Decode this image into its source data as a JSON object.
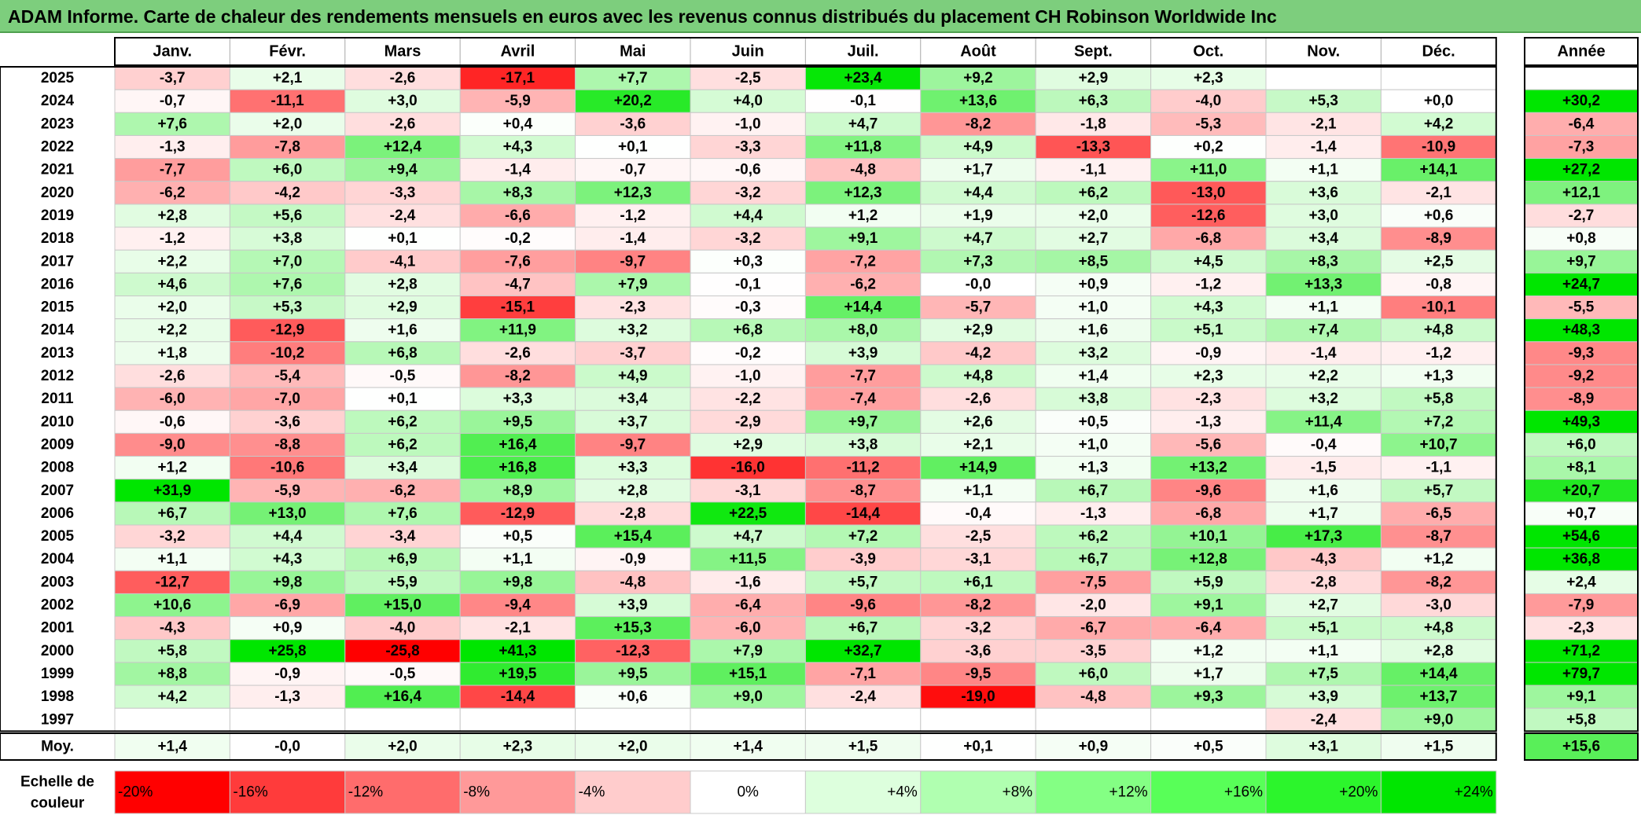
{
  "title": "ADAM Informe. Carte de chaleur des rendements mensuels en euros avec les revenus connus distribués du placement CH Robinson Worldwide Inc",
  "chart_data": {
    "type": "heatmap",
    "months": [
      "Janv.",
      "Févr.",
      "Mars",
      "Avril",
      "Mai",
      "Juin",
      "Juil.",
      "Août",
      "Sept.",
      "Oct.",
      "Nov.",
      "Déc."
    ],
    "year_header": "Année",
    "rows": [
      {
        "year": "2025",
        "values": [
          "-3,7",
          "+2,1",
          "-2,6",
          "-17,1",
          "+7,7",
          "-2,5",
          "+23,4",
          "+9,2",
          "+2,9",
          "+2,3",
          "",
          ""
        ],
        "annual": ""
      },
      {
        "year": "2024",
        "values": [
          "-0,7",
          "-11,1",
          "+3,0",
          "-5,9",
          "+20,2",
          "+4,0",
          "-0,1",
          "+13,6",
          "+6,3",
          "-4,0",
          "+5,3",
          "+0,0"
        ],
        "annual": "+30,2"
      },
      {
        "year": "2023",
        "values": [
          "+7,6",
          "+2,0",
          "-2,6",
          "+0,4",
          "-3,6",
          "-1,0",
          "+4,7",
          "-8,2",
          "-1,8",
          "-5,3",
          "-2,1",
          "+4,2"
        ],
        "annual": "-6,4"
      },
      {
        "year": "2022",
        "values": [
          "-1,3",
          "-7,8",
          "+12,4",
          "+4,3",
          "+0,1",
          "-3,3",
          "+11,8",
          "+4,9",
          "-13,3",
          "+0,2",
          "-1,4",
          "-10,9"
        ],
        "annual": "-7,3"
      },
      {
        "year": "2021",
        "values": [
          "-7,7",
          "+6,0",
          "+9,4",
          "-1,4",
          "-0,7",
          "-0,6",
          "-4,8",
          "+1,7",
          "-1,1",
          "+11,0",
          "+1,1",
          "+14,1"
        ],
        "annual": "+27,2"
      },
      {
        "year": "2020",
        "values": [
          "-6,2",
          "-4,2",
          "-3,3",
          "+8,3",
          "+12,3",
          "-3,2",
          "+12,3",
          "+4,4",
          "+6,2",
          "-13,0",
          "+3,6",
          "-2,1"
        ],
        "annual": "+12,1"
      },
      {
        "year": "2019",
        "values": [
          "+2,8",
          "+5,6",
          "-2,4",
          "-6,6",
          "-1,2",
          "+4,4",
          "+1,2",
          "+1,9",
          "+2,0",
          "-12,6",
          "+3,0",
          "+0,6"
        ],
        "annual": "-2,7"
      },
      {
        "year": "2018",
        "values": [
          "-1,2",
          "+3,8",
          "+0,1",
          "-0,2",
          "-1,4",
          "-3,2",
          "+9,1",
          "+4,7",
          "+2,7",
          "-6,8",
          "+3,4",
          "-8,9"
        ],
        "annual": "+0,8"
      },
      {
        "year": "2017",
        "values": [
          "+2,2",
          "+7,0",
          "-4,1",
          "-7,6",
          "-9,7",
          "+0,3",
          "-7,2",
          "+7,3",
          "+8,5",
          "+4,5",
          "+8,3",
          "+2,5"
        ],
        "annual": "+9,7"
      },
      {
        "year": "2016",
        "values": [
          "+4,6",
          "+7,6",
          "+2,8",
          "-4,7",
          "+7,9",
          "-0,1",
          "-6,2",
          "-0,0",
          "+0,9",
          "-1,2",
          "+13,3",
          "-0,8"
        ],
        "annual": "+24,7"
      },
      {
        "year": "2015",
        "values": [
          "+2,0",
          "+5,3",
          "+2,9",
          "-15,1",
          "-2,3",
          "-0,3",
          "+14,4",
          "-5,7",
          "+1,0",
          "+4,3",
          "+1,1",
          "-10,1"
        ],
        "annual": "-5,5"
      },
      {
        "year": "2014",
        "values": [
          "+2,2",
          "-12,9",
          "+1,6",
          "+11,9",
          "+3,2",
          "+6,8",
          "+8,0",
          "+2,9",
          "+1,6",
          "+5,1",
          "+7,4",
          "+4,8"
        ],
        "annual": "+48,3"
      },
      {
        "year": "2013",
        "values": [
          "+1,8",
          "-10,2",
          "+6,8",
          "-2,6",
          "-3,7",
          "-0,2",
          "+3,9",
          "-4,2",
          "+3,2",
          "-0,9",
          "-1,4",
          "-1,2"
        ],
        "annual": "-9,3"
      },
      {
        "year": "2012",
        "values": [
          "-2,6",
          "-5,4",
          "-0,5",
          "-8,2",
          "+4,9",
          "-1,0",
          "-7,7",
          "+4,8",
          "+1,4",
          "+2,3",
          "+2,2",
          "+1,3"
        ],
        "annual": "-9,2"
      },
      {
        "year": "2011",
        "values": [
          "-6,0",
          "-7,0",
          "+0,1",
          "+3,3",
          "+3,4",
          "-2,2",
          "-7,4",
          "-2,6",
          "+3,8",
          "-2,3",
          "+3,2",
          "+5,8"
        ],
        "annual": "-8,9"
      },
      {
        "year": "2010",
        "values": [
          "-0,6",
          "-3,6",
          "+6,2",
          "+9,5",
          "+3,7",
          "-2,9",
          "+9,7",
          "+2,6",
          "+0,5",
          "-1,3",
          "+11,4",
          "+7,2"
        ],
        "annual": "+49,3"
      },
      {
        "year": "2009",
        "values": [
          "-9,0",
          "-8,8",
          "+6,2",
          "+16,4",
          "-9,7",
          "+2,9",
          "+3,8",
          "+2,1",
          "+1,0",
          "-5,6",
          "-0,4",
          "+10,7"
        ],
        "annual": "+6,0"
      },
      {
        "year": "2008",
        "values": [
          "+1,2",
          "-10,6",
          "+3,4",
          "+16,8",
          "+3,3",
          "-16,0",
          "-11,2",
          "+14,9",
          "+1,3",
          "+13,2",
          "-1,5",
          "-1,1"
        ],
        "annual": "+8,1"
      },
      {
        "year": "2007",
        "values": [
          "+31,9",
          "-5,9",
          "-6,2",
          "+8,9",
          "+2,8",
          "-3,1",
          "-8,7",
          "+1,1",
          "+6,7",
          "-9,6",
          "+1,6",
          "+5,7"
        ],
        "annual": "+20,7"
      },
      {
        "year": "2006",
        "values": [
          "+6,7",
          "+13,0",
          "+7,6",
          "-12,9",
          "-2,8",
          "+22,5",
          "-14,4",
          "-0,4",
          "-1,3",
          "-6,8",
          "+1,7",
          "-6,5"
        ],
        "annual": "+0,7"
      },
      {
        "year": "2005",
        "values": [
          "-3,2",
          "+4,4",
          "-3,4",
          "+0,5",
          "+15,4",
          "+4,7",
          "+7,2",
          "-2,5",
          "+6,2",
          "+10,1",
          "+17,3",
          "-8,7"
        ],
        "annual": "+54,6"
      },
      {
        "year": "2004",
        "values": [
          "+1,1",
          "+4,3",
          "+6,9",
          "+1,1",
          "-0,9",
          "+11,5",
          "-3,9",
          "-3,1",
          "+6,7",
          "+12,8",
          "-4,3",
          "+1,2"
        ],
        "annual": "+36,8"
      },
      {
        "year": "2003",
        "values": [
          "-12,7",
          "+9,8",
          "+5,9",
          "+9,8",
          "-4,8",
          "-1,6",
          "+5,7",
          "+6,1",
          "-7,5",
          "+5,9",
          "-2,8",
          "-8,2"
        ],
        "annual": "+2,4"
      },
      {
        "year": "2002",
        "values": [
          "+10,6",
          "-6,9",
          "+15,0",
          "-9,4",
          "+3,9",
          "-6,4",
          "-9,6",
          "-8,2",
          "-2,0",
          "+9,1",
          "+2,7",
          "-3,0"
        ],
        "annual": "-7,9"
      },
      {
        "year": "2001",
        "values": [
          "-4,3",
          "+0,9",
          "-4,0",
          "-2,1",
          "+15,3",
          "-6,0",
          "+6,7",
          "-3,2",
          "-6,7",
          "-6,4",
          "+5,1",
          "+4,8"
        ],
        "annual": "-2,3"
      },
      {
        "year": "2000",
        "values": [
          "+5,8",
          "+25,8",
          "-25,8",
          "+41,3",
          "-12,3",
          "+7,9",
          "+32,7",
          "-3,6",
          "-3,5",
          "+1,2",
          "+1,1",
          "+2,8"
        ],
        "annual": "+71,2"
      },
      {
        "year": "1999",
        "values": [
          "+8,8",
          "-0,9",
          "-0,5",
          "+19,5",
          "+9,5",
          "+15,1",
          "-7,1",
          "-9,5",
          "+6,0",
          "+1,7",
          "+7,5",
          "+14,4"
        ],
        "annual": "+79,7"
      },
      {
        "year": "1998",
        "values": [
          "+4,2",
          "-1,3",
          "+16,4",
          "-14,4",
          "+0,6",
          "+9,0",
          "-2,4",
          "-19,0",
          "-4,8",
          "+9,3",
          "+3,9",
          "+13,7"
        ],
        "annual": "+9,1"
      },
      {
        "year": "1997",
        "values": [
          "",
          "",
          "",
          "",
          "",
          "",
          "",
          "",
          "",
          "",
          "-2,4",
          "+9,0"
        ],
        "annual": "+5,8"
      }
    ],
    "average": {
      "label": "Moy.",
      "values": [
        "+1,4",
        "-0,0",
        "+2,0",
        "+2,3",
        "+2,0",
        "+1,4",
        "+1,5",
        "+0,1",
        "+0,9",
        "+0,5",
        "+3,1",
        "+1,5"
      ],
      "annual": "+15,6"
    },
    "scale": {
      "label_line1": "Echelle de",
      "label_line2": "couleur",
      "items": [
        {
          "label": "-20%",
          "color": "#ff0000"
        },
        {
          "label": "-16%",
          "color": "#ff3b3b"
        },
        {
          "label": "-12%",
          "color": "#ff6c6c"
        },
        {
          "label": "-8%",
          "color": "#ff9999"
        },
        {
          "label": "-4%",
          "color": "#ffcccc"
        },
        {
          "label": "0%",
          "color": "#ffffff"
        },
        {
          "label": "+4%",
          "color": "#ddffdd"
        },
        {
          "label": "+8%",
          "color": "#b0ffb0"
        },
        {
          "label": "+12%",
          "color": "#84ff84"
        },
        {
          "label": "+16%",
          "color": "#58ff58"
        },
        {
          "label": "+20%",
          "color": "#2cf52c"
        },
        {
          "label": "+24%",
          "color": "#00e600"
        }
      ]
    }
  }
}
